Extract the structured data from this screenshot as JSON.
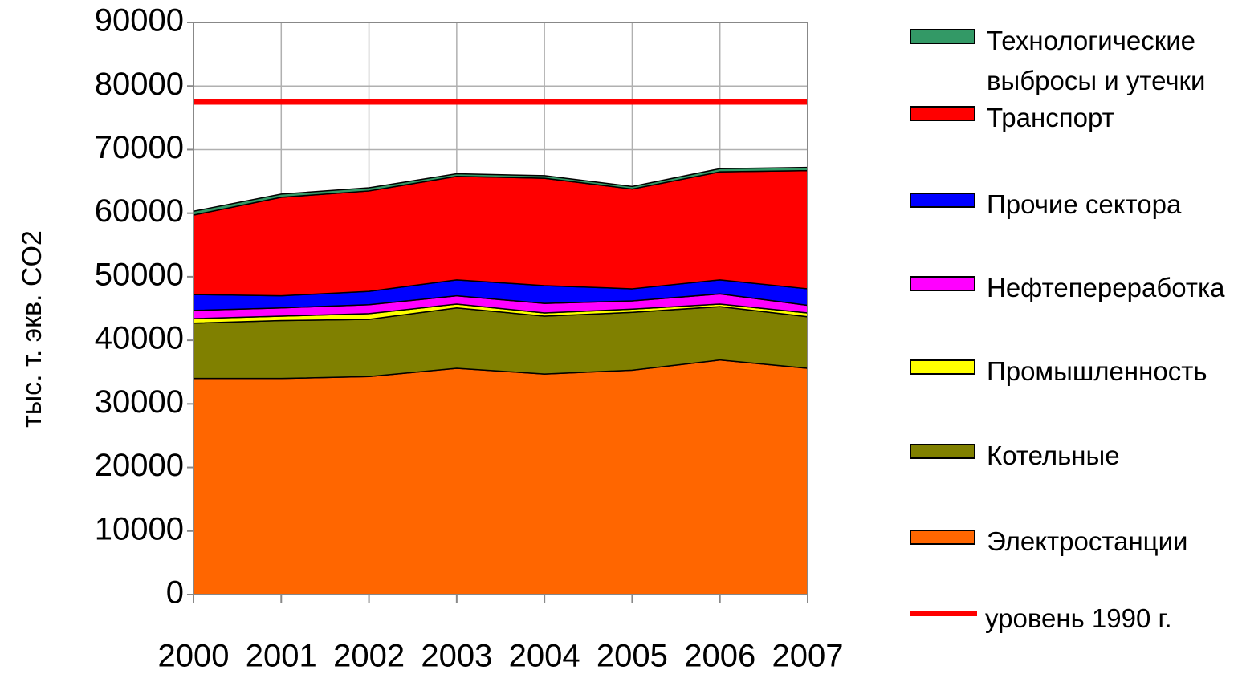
{
  "chart_data": {
    "type": "stacked_area",
    "y_label": "тыс. т. экв. CO2",
    "categories": [
      "2000",
      "2001",
      "2002",
      "2003",
      "2004",
      "2005",
      "2006",
      "2007"
    ],
    "series": [
      {
        "name": "Электростанции",
        "color": "#ff6600",
        "values": [
          34000,
          34000,
          34300,
          35600,
          34700,
          35300,
          36900,
          35600
        ]
      },
      {
        "name": "Котельные",
        "color": "#808000",
        "values": [
          8700,
          9100,
          9000,
          9500,
          9100,
          9100,
          8400,
          8100
        ]
      },
      {
        "name": "Промышленность",
        "color": "#ffff00",
        "values": [
          700,
          700,
          900,
          600,
          500,
          500,
          400,
          600
        ]
      },
      {
        "name": "Нефтепереработка",
        "color": "#ff00ff",
        "values": [
          1300,
          1300,
          1400,
          1300,
          1500,
          1300,
          1600,
          1200
        ]
      },
      {
        "name": "Прочие сектора",
        "color": "#0000ff",
        "values": [
          2500,
          1900,
          2100,
          2500,
          2800,
          1900,
          2200,
          2600
        ]
      },
      {
        "name": "Транспорт",
        "color": "#ff0000",
        "values": [
          12500,
          15500,
          15800,
          16300,
          16900,
          15700,
          17000,
          18600
        ]
      },
      {
        "name": "Технологические выбросы и утечки",
        "color": "#339966",
        "values": [
          600,
          500,
          500,
          400,
          400,
          400,
          500,
          500
        ]
      }
    ],
    "reference_lines": [
      {
        "name": "уровень 1990 г.",
        "value": 77500,
        "color": "#ff0000"
      }
    ],
    "ylim": [
      0,
      90000
    ],
    "yticks": [
      0,
      10000,
      20000,
      30000,
      40000,
      50000,
      60000,
      70000,
      80000,
      90000
    ],
    "grid": true
  }
}
